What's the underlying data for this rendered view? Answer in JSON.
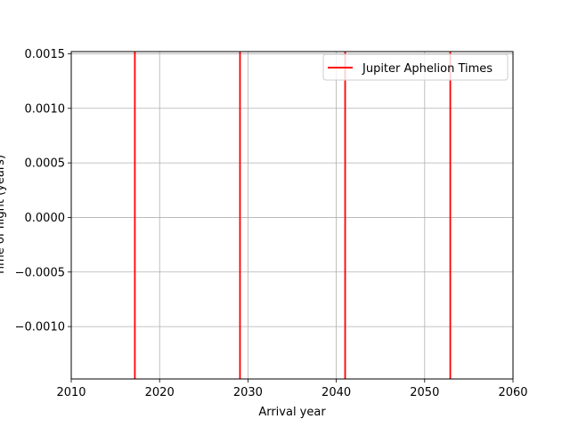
{
  "chart_data": {
    "type": "line",
    "title": "",
    "xlabel": "Arrival year",
    "ylabel": "Time of flight (years)",
    "xlim": [
      2010,
      2060
    ],
    "ylim": [
      -0.0015,
      0.0015
    ],
    "xticks": [
      2010,
      2020,
      2030,
      2040,
      2050,
      2060
    ],
    "xtick_labels": [
      "2010",
      "2020",
      "2030",
      "2040",
      "2050",
      "2060"
    ],
    "yticks": [
      0.0015,
      0.001,
      0.0005,
      0.0,
      -0.0005,
      -0.001
    ],
    "ytick_labels": [
      "0.0015",
      "0.0010",
      "0.0005",
      "0.0000",
      "−0.0005",
      "−0.0010"
    ],
    "grid": true,
    "legend_position": "top-right",
    "series": [
      {
        "name": "Jupiter Aphelion Times",
        "color": "#ff0000",
        "style": "vertical-lines",
        "x": [
          2017.2,
          2029.1,
          2041.0,
          2052.9
        ]
      }
    ]
  }
}
